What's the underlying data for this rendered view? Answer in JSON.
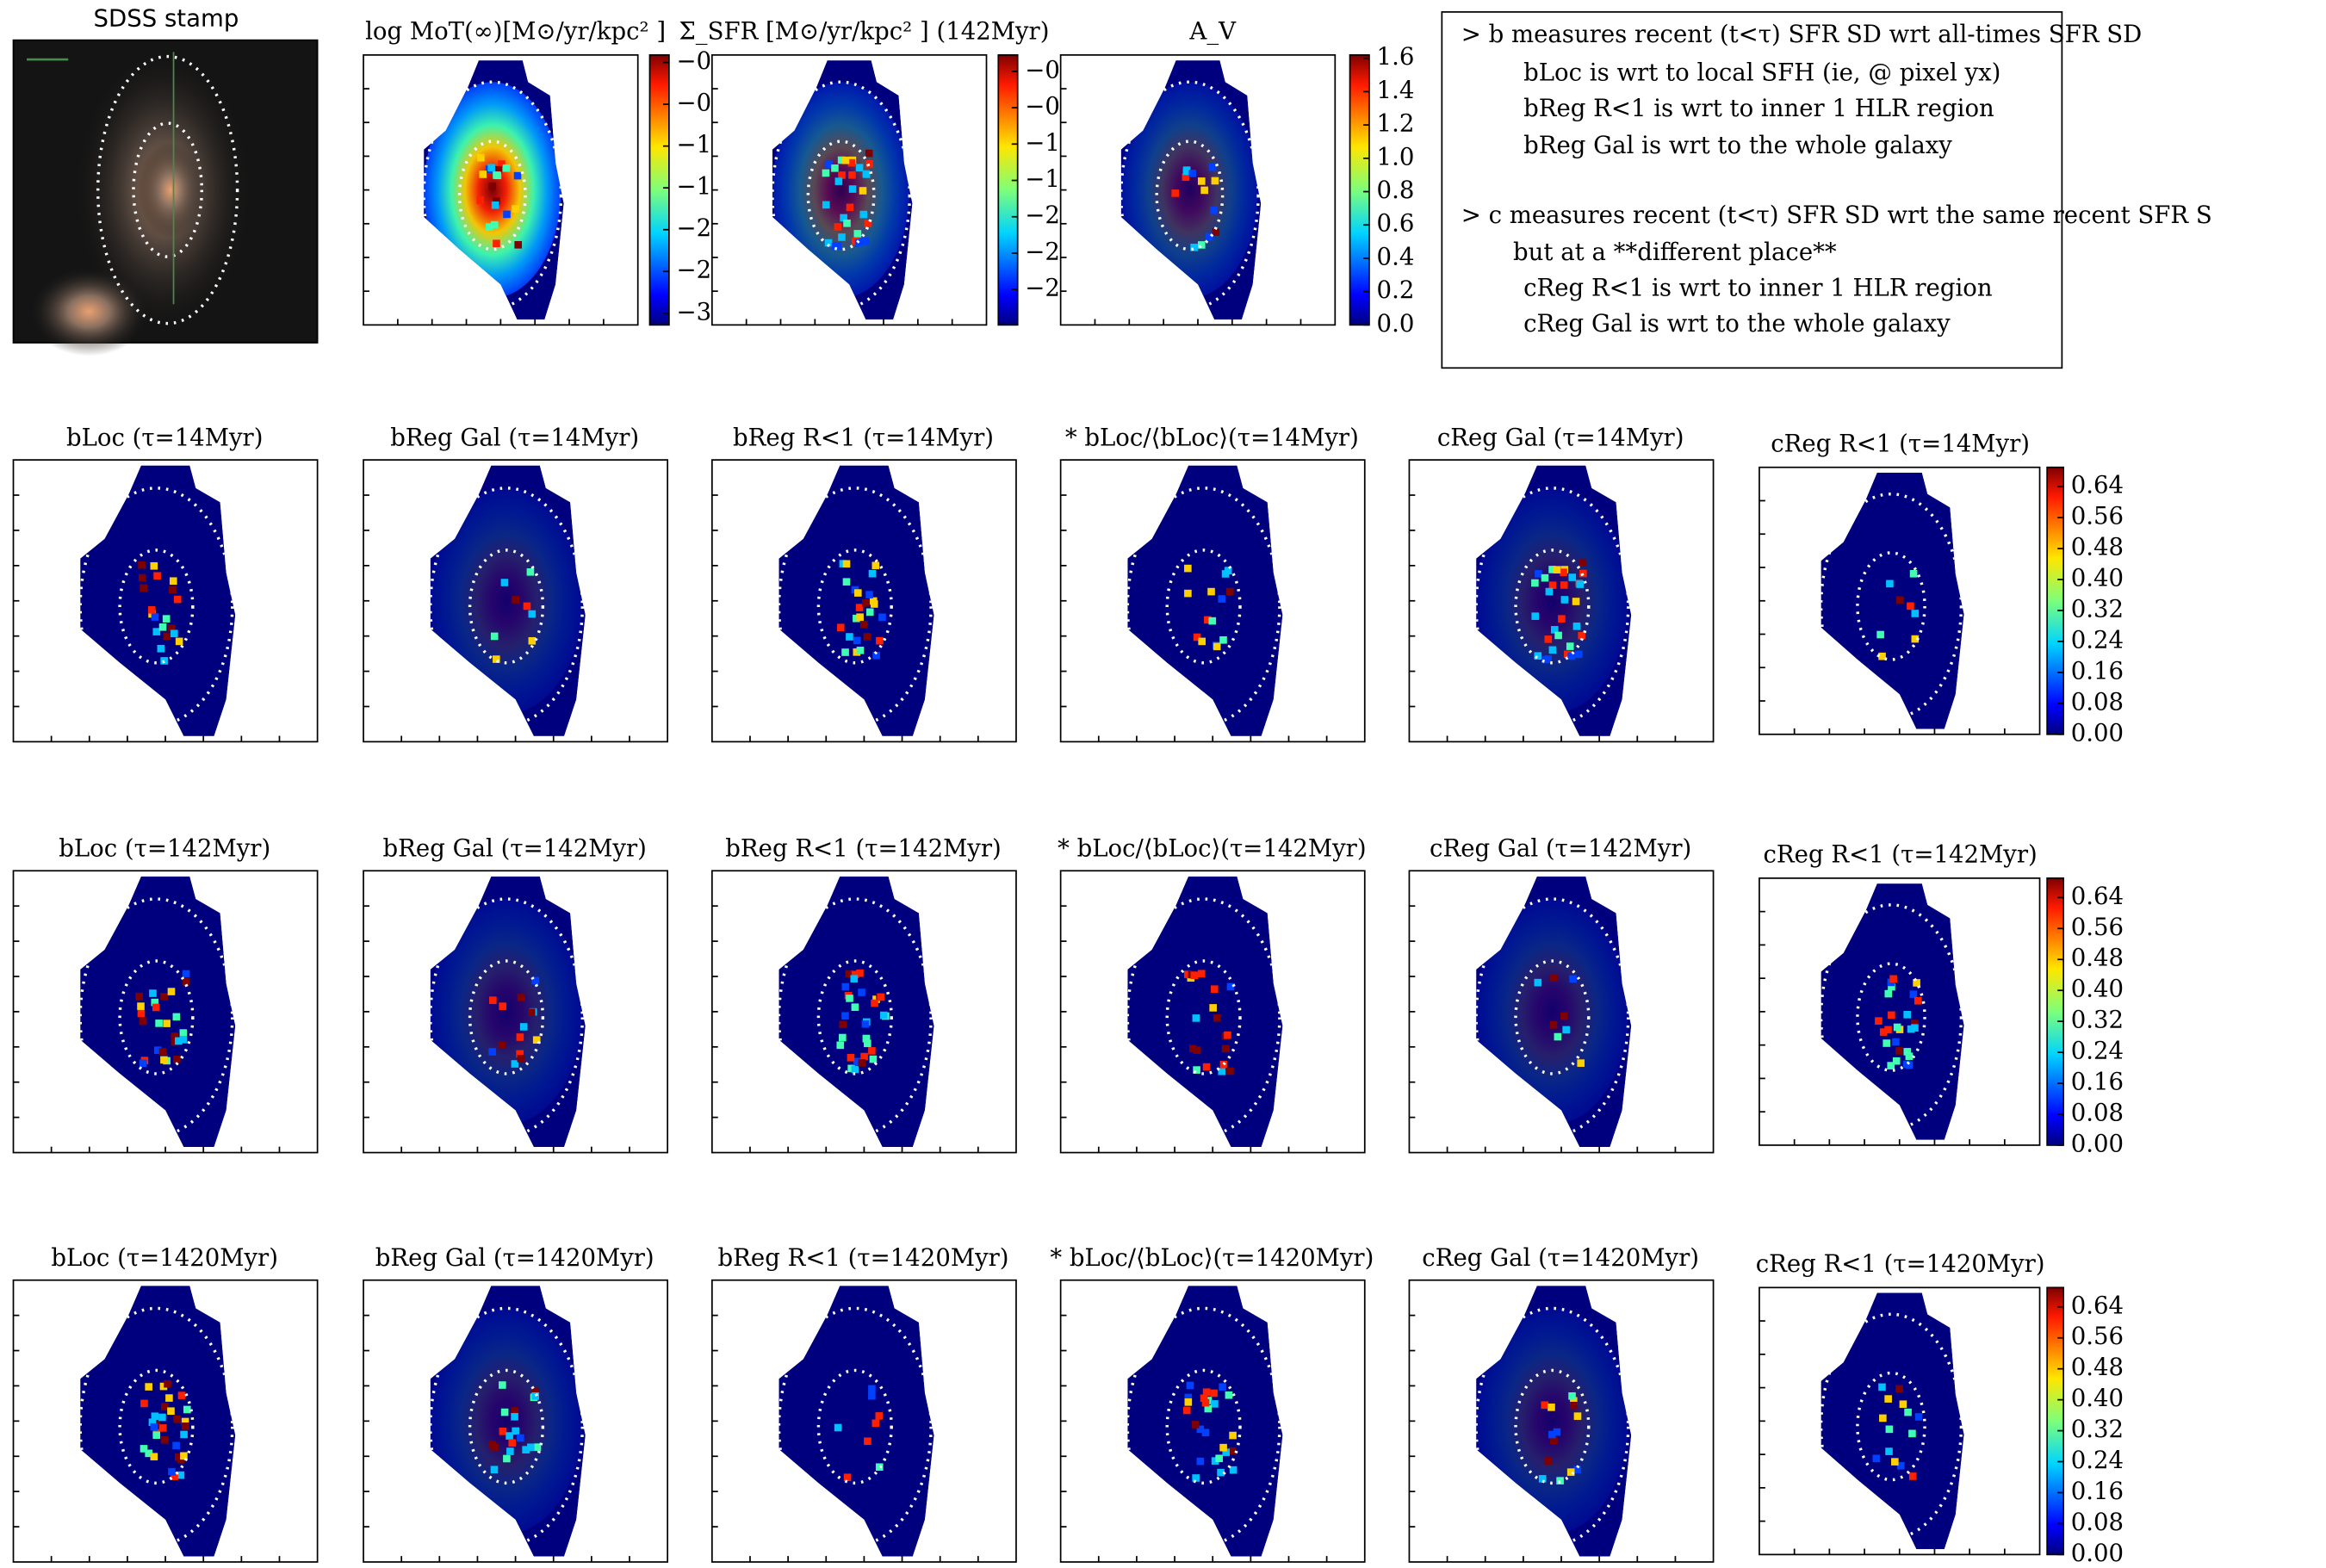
{
  "top_row": {
    "panels": [
      {
        "title": "SDSS stamp"
      },
      {
        "title": "log MoT(∞)[M⊙/yr/kpc² ]",
        "colorbar": {
          "lim": [
            -3.14,
            0.09
          ],
          "ticks": [
            {
              "value": 0,
              "label": "−0"
            },
            {
              "value": -0.5,
              "label": "−0"
            },
            {
              "value": -1,
              "label": "−1"
            },
            {
              "value": -1.5,
              "label": "−1"
            },
            {
              "value": -2,
              "label": "−2"
            },
            {
              "value": -2.5,
              "label": "−2"
            },
            {
              "value": -3,
              "label": "−3"
            }
          ]
        }
      },
      {
        "title": "Σ_SFR [M⊙/yr/kpc² ] (142Myr)",
        "colorbar": {
          "lim": [
            -3.19,
            -0.22
          ],
          "ticks": [
            {
              "value": -0.4,
              "label": "−0"
            },
            {
              "value": -0.8,
              "label": "−0"
            },
            {
              "value": -1.2,
              "label": "−1"
            },
            {
              "value": -1.6,
              "label": "−1"
            },
            {
              "value": -2.0,
              "label": "−2"
            },
            {
              "value": -2.4,
              "label": "−2"
            },
            {
              "value": -2.8,
              "label": "−2"
            }
          ]
        }
      },
      {
        "title": "A_V",
        "colorbar": {
          "lim": [
            0,
            1.62
          ],
          "ticks": [
            {
              "value": 0,
              "label": "0.0"
            },
            0.2,
            0.4,
            0.6,
            0.8,
            {
              "value": 1,
              "label": "1.0"
            },
            1.2,
            1.4,
            1.6
          ]
        }
      }
    ]
  },
  "note": {
    "lines": [
      "> b measures recent (t<τ) SFR SD wrt all-times SFR SD",
      "bLoc is wrt to local SFH (ie, @ pixel yx)",
      "bReg R<1 is wrt to inner 1 HLR region",
      "bReg Gal is wrt to the whole galaxy",
      "> c measures recent (t<τ) SFR SD wrt the same recent SFR S",
      "but at a **different place**",
      "cReg R<1 is wrt to inner 1 HLR region",
      "cReg Gal is wrt to the whole galaxy"
    ]
  },
  "grid": {
    "rows": [
      {
        "panels": [
          "bLoc (τ=14Myr)",
          "bReg Gal (τ=14Myr)",
          "bReg R<1 (τ=14Myr)",
          "* bLoc/⟨bLoc⟩(τ=14Myr)",
          "cReg Gal (τ=14Myr)",
          "cReg R<1 (τ=14Myr)"
        ],
        "colorbar": {
          "lim": [
            0,
            0.69
          ],
          "ticks": [
            {
              "value": 0,
              "label": "0.00"
            },
            0.08,
            0.16,
            0.24,
            0.32,
            {
              "value": 0.4,
              "label": "0.40"
            },
            0.48,
            0.56,
            0.64
          ]
        }
      },
      {
        "panels": [
          "bLoc (τ=142Myr)",
          "bReg Gal (τ=142Myr)",
          "bReg R<1 (τ=142Myr)",
          "* bLoc/⟨bLoc⟩(τ=142Myr)",
          "cReg Gal (τ=142Myr)",
          "cReg R<1 (τ=142Myr)"
        ],
        "colorbar": {
          "lim": [
            0,
            0.69
          ],
          "ticks": [
            {
              "value": 0,
              "label": "0.00"
            },
            0.08,
            0.16,
            0.24,
            0.32,
            {
              "value": 0.4,
              "label": "0.40"
            },
            0.48,
            0.56,
            0.64
          ]
        }
      },
      {
        "panels": [
          "bLoc (τ=1420Myr)",
          "bReg Gal (τ=1420Myr)",
          "bReg R<1 (τ=1420Myr)",
          "* bLoc/⟨bLoc⟩(τ=1420Myr)",
          "cReg Gal (τ=1420Myr)",
          "cReg R<1 (τ=1420Myr)"
        ],
        "colorbar": {
          "lim": [
            0,
            0.69
          ],
          "ticks": [
            {
              "value": 0,
              "label": "0.00"
            },
            0.08,
            0.16,
            0.24,
            0.32,
            {
              "value": 0.4,
              "label": "0.40"
            },
            0.48,
            0.56,
            0.64
          ]
        }
      }
    ]
  }
}
